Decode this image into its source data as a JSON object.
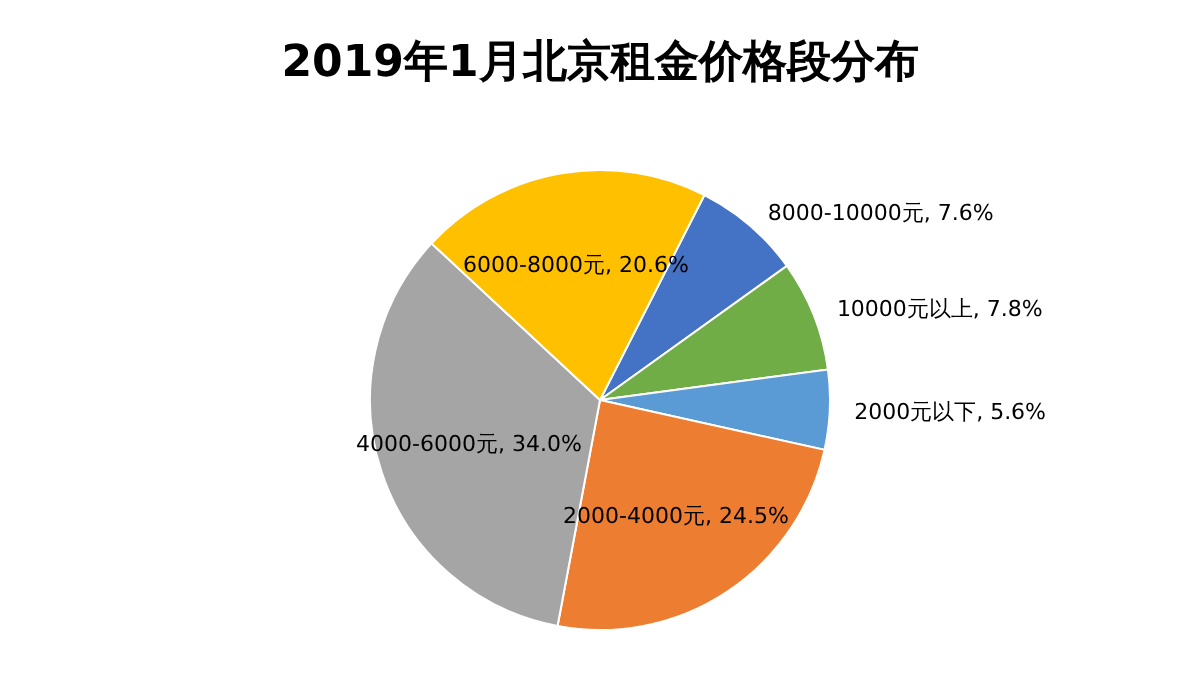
{
  "chart_data": {
    "type": "pie",
    "title": "2019年1月北京租金价格段分布",
    "categories": [
      "8000-10000元",
      "10000元以上",
      "2000元以下",
      "2000-4000元",
      "4000-6000元",
      "6000-8000元"
    ],
    "values": [
      7.6,
      7.8,
      5.6,
      24.5,
      34.0,
      20.6
    ],
    "value_labels": [
      "7.6%",
      "7.8%",
      "5.6%",
      "24.5%",
      "34.0%",
      "20.6%"
    ],
    "colors": [
      "#4472c4",
      "#70ad47",
      "#5b9bd5",
      "#ed7d31",
      "#a5a5a5",
      "#ffc000"
    ],
    "legend": false
  }
}
